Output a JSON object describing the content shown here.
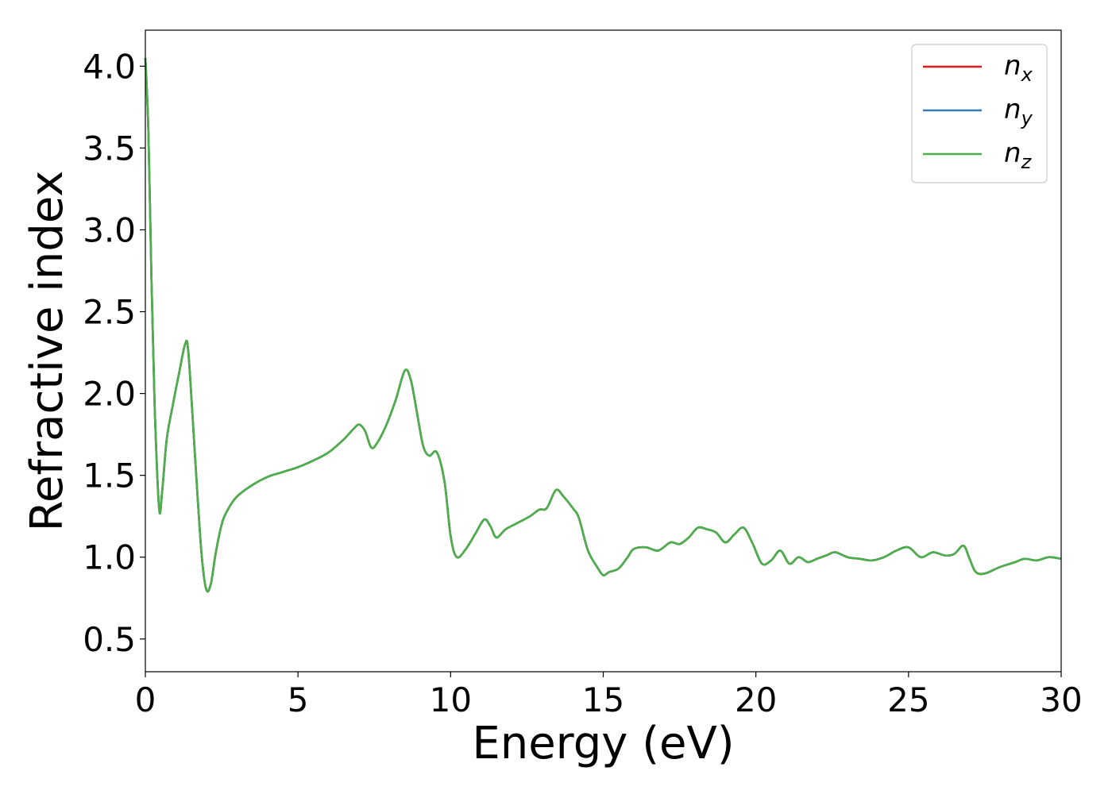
{
  "chart_data": {
    "type": "line",
    "title": "",
    "xlabel": "Energy (eV)",
    "ylabel": "Refractive index",
    "xlim": [
      0,
      30
    ],
    "ylim": [
      0.3,
      4.22
    ],
    "xticks": [
      0,
      5,
      10,
      15,
      20,
      25,
      30
    ],
    "xtick_labels": [
      "0",
      "5",
      "10",
      "15",
      "20",
      "25",
      "30"
    ],
    "yticks": [
      0.5,
      1.0,
      1.5,
      2.0,
      2.5,
      3.0,
      3.5,
      4.0
    ],
    "ytick_labels": [
      "0.5",
      "1.0",
      "1.5",
      "2.0",
      "2.5",
      "3.0",
      "3.5",
      "4.0"
    ],
    "grid": false,
    "legend_position": "top-right",
    "x": [
      0,
      0.1,
      0.2,
      0.3,
      0.45,
      0.55,
      0.7,
      0.9,
      1.1,
      1.3,
      1.4,
      1.55,
      1.7,
      1.85,
      2.0,
      2.15,
      2.3,
      2.5,
      2.7,
      3.0,
      3.5,
      4.0,
      4.5,
      5.0,
      5.5,
      6.0,
      6.5,
      6.8,
      7.0,
      7.2,
      7.4,
      7.6,
      7.9,
      8.2,
      8.5,
      8.7,
      8.9,
      9.1,
      9.3,
      9.55,
      9.8,
      10.0,
      10.2,
      10.5,
      10.8,
      11.1,
      11.3,
      11.5,
      11.8,
      12.2,
      12.6,
      12.9,
      13.15,
      13.45,
      13.7,
      14.0,
      14.2,
      14.5,
      14.8,
      15.0,
      15.2,
      15.5,
      15.8,
      16.0,
      16.4,
      16.8,
      17.2,
      17.5,
      17.8,
      18.1,
      18.4,
      18.7,
      19.0,
      19.3,
      19.6,
      19.9,
      20.2,
      20.5,
      20.8,
      21.1,
      21.4,
      21.7,
      22.0,
      22.3,
      22.6,
      23.0,
      23.4,
      23.8,
      24.2,
      24.6,
      25.0,
      25.4,
      25.8,
      26.2,
      26.5,
      26.8,
      27.0,
      27.2,
      27.5,
      28.0,
      28.5,
      28.8,
      29.2,
      29.6,
      30.0
    ],
    "series": [
      {
        "name": "n_x",
        "color": "#e41a1c",
        "values": [
          4.05,
          3.6,
          2.7,
          1.95,
          1.3,
          1.4,
          1.72,
          1.93,
          2.12,
          2.3,
          2.27,
          1.85,
          1.4,
          1.0,
          0.8,
          0.84,
          1.02,
          1.2,
          1.29,
          1.37,
          1.44,
          1.49,
          1.52,
          1.55,
          1.59,
          1.64,
          1.72,
          1.78,
          1.81,
          1.77,
          1.67,
          1.7,
          1.81,
          1.96,
          2.14,
          2.08,
          1.88,
          1.68,
          1.62,
          1.64,
          1.46,
          1.13,
          1.0,
          1.05,
          1.14,
          1.23,
          1.19,
          1.12,
          1.17,
          1.21,
          1.25,
          1.29,
          1.3,
          1.41,
          1.37,
          1.3,
          1.24,
          1.04,
          0.94,
          0.89,
          0.91,
          0.93,
          1.0,
          1.05,
          1.06,
          1.04,
          1.09,
          1.08,
          1.12,
          1.18,
          1.17,
          1.15,
          1.09,
          1.14,
          1.18,
          1.08,
          0.96,
          0.98,
          1.04,
          0.96,
          1.0,
          0.97,
          0.99,
          1.01,
          1.03,
          1.0,
          0.99,
          0.98,
          1.0,
          1.04,
          1.06,
          1.0,
          1.03,
          1.01,
          1.02,
          1.07,
          0.99,
          0.91,
          0.9,
          0.94,
          0.97,
          0.99,
          0.98,
          1.0,
          0.99
        ]
      },
      {
        "name": "n_y",
        "color": "#377eb8",
        "values": [
          4.05,
          3.6,
          2.7,
          1.95,
          1.3,
          1.4,
          1.72,
          1.93,
          2.12,
          2.3,
          2.27,
          1.85,
          1.4,
          1.0,
          0.8,
          0.84,
          1.02,
          1.2,
          1.29,
          1.37,
          1.44,
          1.49,
          1.52,
          1.55,
          1.59,
          1.64,
          1.72,
          1.78,
          1.81,
          1.77,
          1.67,
          1.7,
          1.81,
          1.96,
          2.14,
          2.08,
          1.88,
          1.68,
          1.62,
          1.64,
          1.46,
          1.13,
          1.0,
          1.05,
          1.14,
          1.23,
          1.19,
          1.12,
          1.17,
          1.21,
          1.25,
          1.29,
          1.3,
          1.41,
          1.37,
          1.3,
          1.24,
          1.04,
          0.94,
          0.89,
          0.91,
          0.93,
          1.0,
          1.05,
          1.06,
          1.04,
          1.09,
          1.08,
          1.12,
          1.18,
          1.17,
          1.15,
          1.09,
          1.14,
          1.18,
          1.08,
          0.96,
          0.98,
          1.04,
          0.96,
          1.0,
          0.97,
          0.99,
          1.01,
          1.03,
          1.0,
          0.99,
          0.98,
          1.0,
          1.04,
          1.06,
          1.0,
          1.03,
          1.01,
          1.02,
          1.07,
          0.99,
          0.91,
          0.9,
          0.94,
          0.97,
          0.99,
          0.98,
          1.0,
          0.99
        ]
      },
      {
        "name": "n_z",
        "color": "#4daf4a",
        "values": [
          4.05,
          3.6,
          2.7,
          1.95,
          1.3,
          1.4,
          1.72,
          1.93,
          2.12,
          2.3,
          2.27,
          1.85,
          1.4,
          1.0,
          0.8,
          0.84,
          1.02,
          1.2,
          1.29,
          1.37,
          1.44,
          1.49,
          1.52,
          1.55,
          1.59,
          1.64,
          1.72,
          1.78,
          1.81,
          1.77,
          1.67,
          1.7,
          1.81,
          1.96,
          2.14,
          2.08,
          1.88,
          1.68,
          1.62,
          1.64,
          1.46,
          1.13,
          1.0,
          1.05,
          1.14,
          1.23,
          1.19,
          1.12,
          1.17,
          1.21,
          1.25,
          1.29,
          1.3,
          1.41,
          1.37,
          1.3,
          1.24,
          1.04,
          0.94,
          0.89,
          0.91,
          0.93,
          1.0,
          1.05,
          1.06,
          1.04,
          1.09,
          1.08,
          1.12,
          1.18,
          1.17,
          1.15,
          1.09,
          1.14,
          1.18,
          1.08,
          0.96,
          0.98,
          1.04,
          0.96,
          1.0,
          0.97,
          0.99,
          1.01,
          1.03,
          1.0,
          0.99,
          0.98,
          1.0,
          1.04,
          1.06,
          1.0,
          1.03,
          1.01,
          1.02,
          1.07,
          0.99,
          0.91,
          0.9,
          0.94,
          0.97,
          0.99,
          0.98,
          1.0,
          0.99
        ]
      }
    ],
    "legend": [
      {
        "base": "n",
        "sub": "x",
        "color": "#e41a1c"
      },
      {
        "base": "n",
        "sub": "y",
        "color": "#377eb8"
      },
      {
        "base": "n",
        "sub": "z",
        "color": "#4daf4a"
      }
    ]
  }
}
